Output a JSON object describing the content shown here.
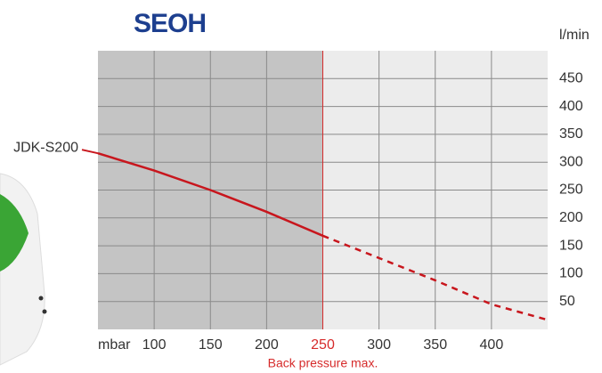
{
  "chart_data": {
    "type": "line",
    "logo": "SEOH",
    "x_label": "mbar",
    "y_label": "l/min",
    "xlim": [
      50,
      450
    ],
    "xticks": [
      100,
      150,
      200,
      250,
      300,
      350,
      400
    ],
    "ylim": [
      0,
      500
    ],
    "yticks": [
      50,
      100,
      150,
      200,
      250,
      300,
      350,
      400,
      450
    ],
    "grid": true,
    "annotation": {
      "text": "Back pressure max.",
      "x": 250,
      "color": "#d62b2b"
    },
    "series": [
      {
        "name": "JDK-S200",
        "color": "#c8161d",
        "dash": false,
        "x": [
          50,
          100,
          150,
          200,
          250
        ],
        "values": [
          316,
          285,
          250,
          211,
          168
        ]
      },
      {
        "color": "#c8161d",
        "dash": true,
        "x": [
          250,
          300,
          350,
          400,
          450
        ],
        "values": [
          168,
          128,
          88,
          45,
          17
        ]
      }
    ]
  }
}
